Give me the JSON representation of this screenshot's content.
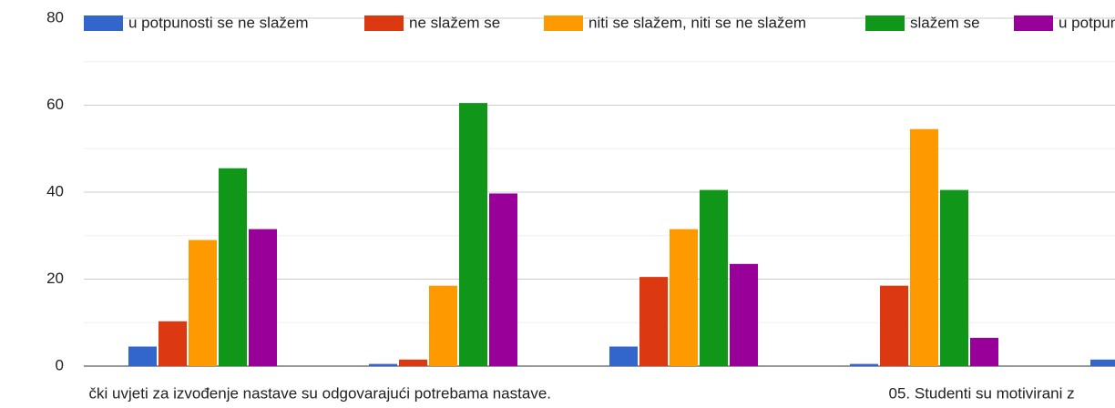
{
  "chart_data": {
    "type": "bar",
    "categories": [
      "čki uvjeti za izvođenje nastave su odgovarajući potrebama nastave.",
      null,
      null,
      "05. Studenti su motivirani z",
      null
    ],
    "series": [
      {
        "name": "u potpunosti se ne slažem",
        "color": "#3366cc",
        "values": [
          4.5,
          0.5,
          4.5,
          0.5,
          1.5
        ]
      },
      {
        "name": "ne slažem se",
        "color": "#dc3912",
        "values": [
          10.3,
          1.5,
          20.5,
          18.5,
          null
        ]
      },
      {
        "name": "niti se slažem, niti se ne slažem",
        "color": "#ff9900",
        "values": [
          29,
          18.5,
          31.5,
          54.5,
          null
        ]
      },
      {
        "name": "slažem se",
        "color": "#109618",
        "values": [
          45.5,
          60.5,
          40.5,
          40.5,
          null
        ]
      },
      {
        "name": "u potpunosti se slažem",
        "color": "#990099",
        "values": [
          31.5,
          39.7,
          23.5,
          6.5,
          null
        ]
      }
    ],
    "ylim": [
      0,
      80
    ],
    "yticks": [
      0,
      20,
      40,
      60,
      80
    ],
    "minor_yticks": [
      10,
      30,
      50,
      70
    ],
    "grid": true,
    "legend": "top"
  }
}
